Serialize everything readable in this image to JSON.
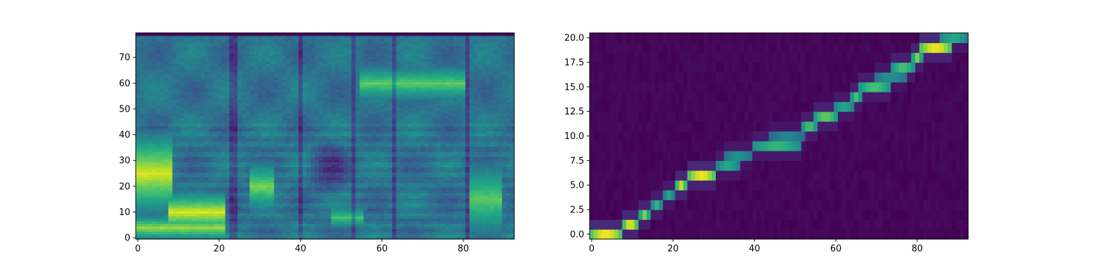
{
  "colormap": "viridis",
  "chart_data": [
    {
      "type": "heatmap",
      "description_role": "mel-spectrogram",
      "xlim": [
        -0.5,
        92.5
      ],
      "ylim": [
        -0.5,
        79.5
      ],
      "x_ticks": [
        0,
        20,
        40,
        60,
        80
      ],
      "y_ticks": [
        0,
        10,
        20,
        30,
        40,
        50,
        60,
        70
      ],
      "n_cols": 93,
      "n_rows": 80,
      "bands": [
        {
          "y_center": 4,
          "y_width": 4,
          "x_start": 0,
          "x_end": 21,
          "value": 0.85
        },
        {
          "y_center": 10,
          "y_width": 6,
          "x_start": 8,
          "x_end": 21,
          "value": 0.95
        },
        {
          "y_center": 25,
          "y_width": 12,
          "x_start": 0,
          "x_end": 8,
          "value": 0.95
        },
        {
          "y_center": 20,
          "y_width": 8,
          "x_start": 28,
          "x_end": 33,
          "value": 0.8
        },
        {
          "y_center": 60,
          "y_width": 6,
          "x_start": 55,
          "x_end": 80,
          "value": 0.75
        },
        {
          "y_center": 8,
          "y_width": 4,
          "x_start": 48,
          "x_end": 55,
          "value": 0.7
        },
        {
          "y_center": 15,
          "y_width": 12,
          "x_start": 82,
          "x_end": 89,
          "value": 0.75
        }
      ],
      "dark_columns": [
        23,
        24,
        40,
        53,
        63,
        81
      ],
      "dark_blob": {
        "x_center": 47,
        "y_center": 27,
        "x_radius": 6,
        "y_radius": 12
      }
    },
    {
      "type": "heatmap",
      "description_role": "attention-alignment",
      "xlim": [
        -0.5,
        92.5
      ],
      "ylim": [
        -0.5,
        20.5
      ],
      "x_ticks": [
        0,
        20,
        40,
        60,
        80
      ],
      "y_ticks": [
        0.0,
        2.5,
        5.0,
        7.5,
        10.0,
        12.5,
        15.0,
        17.5,
        20.0
      ],
      "y_tick_labels": [
        "0.0",
        "2.5",
        "5.0",
        "7.5",
        "10.0",
        "12.5",
        "15.0",
        "17.5",
        "20.0"
      ],
      "n_cols": 93,
      "n_rows": 21,
      "alignment_path": [
        {
          "row": 0,
          "x_start": 0,
          "x_end": 7,
          "value": 0.98
        },
        {
          "row": 1,
          "x_start": 8,
          "x_end": 11,
          "value": 0.95
        },
        {
          "row": 2,
          "x_start": 12,
          "x_end": 14,
          "value": 0.8
        },
        {
          "row": 3,
          "x_start": 15,
          "x_end": 17,
          "value": 0.65
        },
        {
          "row": 4,
          "x_start": 18,
          "x_end": 20,
          "value": 0.6
        },
        {
          "row": 5,
          "x_start": 21,
          "x_end": 23,
          "value": 0.9
        },
        {
          "row": 6,
          "x_start": 24,
          "x_end": 30,
          "value": 0.97
        },
        {
          "row": 7,
          "x_start": 31,
          "x_end": 36,
          "value": 0.6
        },
        {
          "row": 8,
          "x_start": 33,
          "x_end": 39,
          "value": 0.5
        },
        {
          "row": 9,
          "x_start": 40,
          "x_end": 51,
          "value": 0.65
        },
        {
          "row": 10,
          "x_start": 44,
          "x_end": 52,
          "value": 0.45
        },
        {
          "row": 11,
          "x_start": 52,
          "x_end": 55,
          "value": 0.7
        },
        {
          "row": 12,
          "x_start": 55,
          "x_end": 60,
          "value": 0.75
        },
        {
          "row": 13,
          "x_start": 60,
          "x_end": 64,
          "value": 0.6
        },
        {
          "row": 14,
          "x_start": 64,
          "x_end": 66,
          "value": 0.7
        },
        {
          "row": 15,
          "x_start": 66,
          "x_end": 73,
          "value": 0.7
        },
        {
          "row": 16,
          "x_start": 70,
          "x_end": 77,
          "value": 0.5
        },
        {
          "row": 17,
          "x_start": 74,
          "x_end": 79,
          "value": 0.7
        },
        {
          "row": 18,
          "x_start": 79,
          "x_end": 81,
          "value": 0.8
        },
        {
          "row": 19,
          "x_start": 81,
          "x_end": 88,
          "value": 0.97
        },
        {
          "row": 20,
          "x_start": 86,
          "x_end": 92,
          "value": 0.6
        }
      ]
    }
  ]
}
